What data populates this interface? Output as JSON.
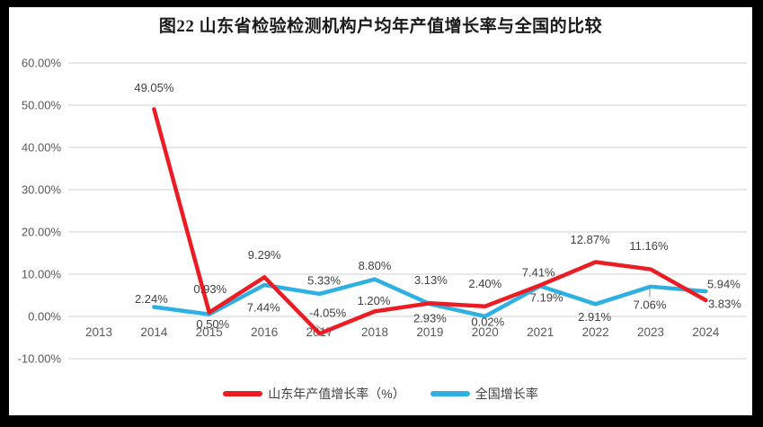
{
  "chart_data": {
    "type": "line",
    "title": "图22 山东省检验检测机构户均年产值增长率与全国的比较",
    "categories": [
      "2013",
      "2014",
      "2015",
      "2016",
      "2017",
      "2018",
      "2019",
      "2020",
      "2021",
      "2022",
      "2023",
      "2024"
    ],
    "series": [
      {
        "name": "山东年产值增长率（%）",
        "color": "#EC1C24",
        "values": [
          null,
          49.05,
          0.93,
          9.29,
          -4.05,
          1.2,
          3.13,
          2.4,
          7.41,
          12.87,
          11.16,
          3.83
        ],
        "labels": [
          "",
          "49.05%",
          "0.93%",
          "9.29%",
          "-4.05%",
          "1.20%",
          "3.13%",
          "2.40%",
          "7.41%",
          "12.87%",
          "11.16%",
          "3.83%"
        ],
        "label_offsets": [
          null,
          [
            0,
            -24
          ],
          [
            1,
            -26
          ],
          [
            0,
            -25
          ],
          [
            9,
            -23
          ],
          [
            -1,
            -12
          ],
          [
            1,
            -26
          ],
          [
            0,
            -25
          ],
          [
            -2,
            -14
          ],
          [
            -6,
            -25
          ],
          [
            -2,
            -26
          ],
          [
            21,
            4
          ]
        ]
      },
      {
        "name": "全国增长率",
        "color": "#2FB0E3",
        "values": [
          null,
          2.24,
          0.5,
          7.44,
          5.33,
          8.8,
          2.93,
          0.02,
          7.19,
          2.91,
          7.06,
          5.94
        ],
        "labels": [
          "",
          "2.24%",
          "0.50%",
          "7.44%",
          "5.33%",
          "8.80%",
          "2.93%",
          "0.02%",
          "7.19%",
          "2.91%",
          "7.06%",
          "5.94%"
        ],
        "label_offsets": [
          null,
          [
            -3,
            -9
          ],
          [
            4,
            11
          ],
          [
            -1,
            25
          ],
          [
            5,
            -15
          ],
          [
            0,
            -15
          ],
          [
            0,
            16
          ],
          [
            3,
            6
          ],
          [
            7,
            13
          ],
          [
            -1,
            14
          ],
          [
            -1,
            20
          ],
          [
            20,
            -8
          ]
        ]
      }
    ],
    "y_ticks": [
      {
        "value": 60,
        "label": "60.00%"
      },
      {
        "value": 50,
        "label": "50.00%"
      },
      {
        "value": 40,
        "label": "40.00%"
      },
      {
        "value": 30,
        "label": "30.00%"
      },
      {
        "value": 20,
        "label": "20.00%"
      },
      {
        "value": 10,
        "label": "10.00%"
      },
      {
        "value": 0,
        "label": "0.00%"
      },
      {
        "value": -10,
        "label": "-10.00%"
      }
    ],
    "ylim": [
      -10,
      60
    ],
    "grid": true,
    "legend_position": "bottom"
  },
  "colors": {
    "grid": "#D9D9D9",
    "axis_text": "#595959",
    "label_text": "#3F3F3F",
    "leader": "#9E9E9E",
    "frame": "#000000",
    "background": "#FFFFFF"
  }
}
